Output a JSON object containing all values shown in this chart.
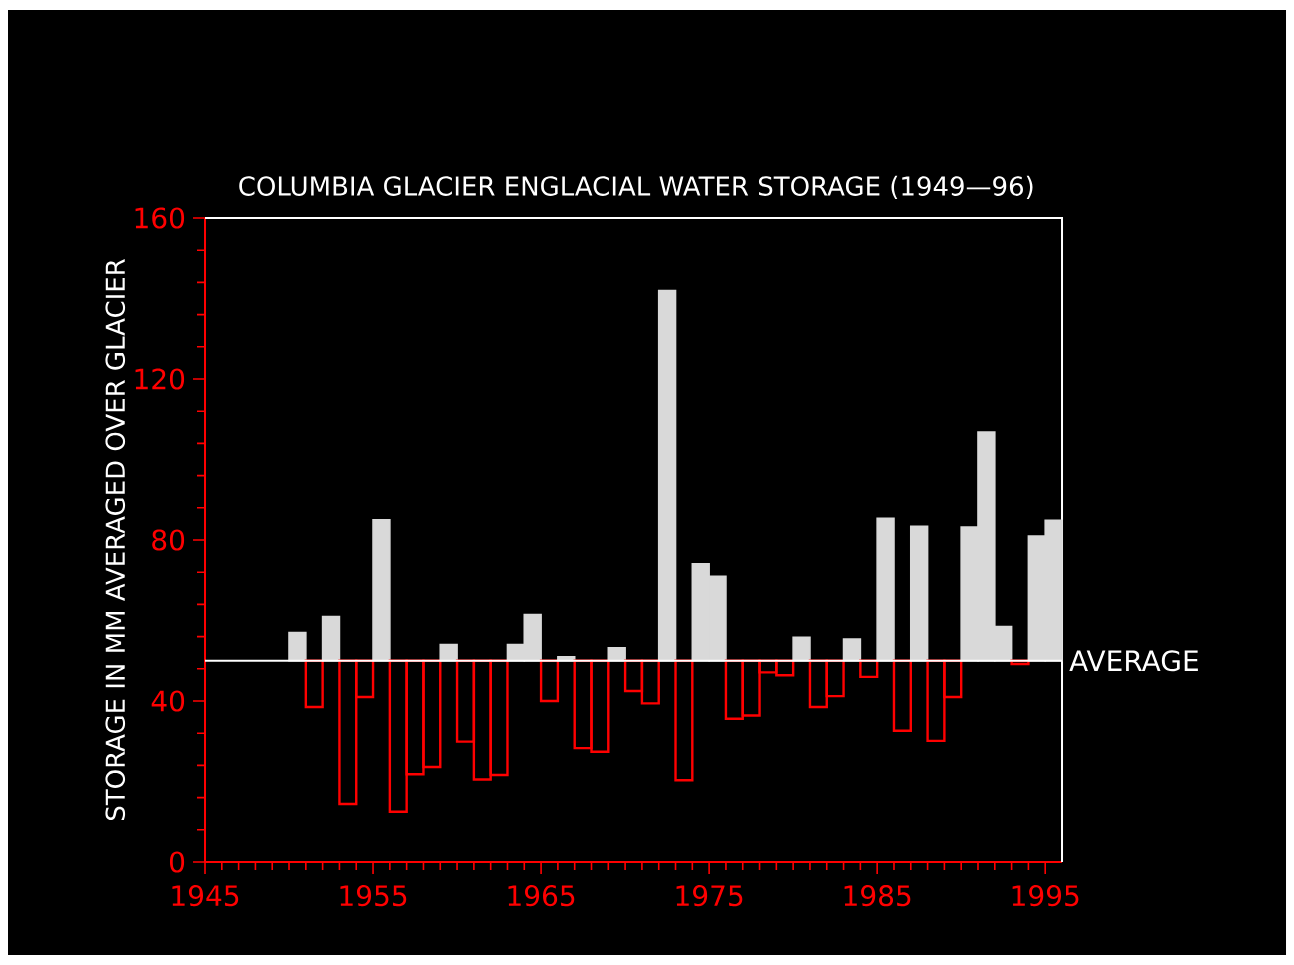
{
  "chart_data": {
    "type": "bar",
    "title": "COLUMBIA GLACIER ENGLACIAL WATER STORAGE (1949—96)",
    "ylabel": "STORAGE IN MM AVERAGED OVER GLACIER",
    "x": [
      1950.5,
      1951.5,
      1952.5,
      1953.5,
      1954.5,
      1955.5,
      1956.5,
      1957.5,
      1958.5,
      1959.5,
      1960.5,
      1961.5,
      1962.5,
      1963.5,
      1964.5,
      1965.5,
      1966.5,
      1967.5,
      1968.5,
      1969.5,
      1970.5,
      1971.5,
      1972.5,
      1973.5,
      1974.5,
      1975.5,
      1976.5,
      1977.5,
      1978.5,
      1979.5,
      1980.5,
      1981.5,
      1982.5,
      1983.5,
      1984.5,
      1985.5,
      1986.5,
      1987.5,
      1988.5,
      1989.5,
      1990.5,
      1991.5,
      1992.5,
      1993.5,
      1994.5,
      1995.5
    ],
    "base": [
      50,
      50,
      50,
      50,
      50,
      50,
      50,
      50,
      50,
      50,
      50,
      50,
      50,
      50,
      50,
      50,
      50,
      50,
      50,
      50,
      50,
      50,
      50,
      50,
      50,
      50,
      50,
      50,
      50,
      50,
      50,
      50,
      50,
      50,
      50,
      50,
      50,
      50,
      50,
      50,
      50,
      50,
      50,
      50,
      50,
      50
    ],
    "values": [
      7,
      -11.5,
      11,
      -35.6,
      -9,
      35,
      -37.5,
      -28.2,
      -26.4,
      4,
      -20.1,
      -29.5,
      -28.4,
      4,
      11.5,
      -10,
      1,
      -21.7,
      -22.6,
      3.2,
      -7.5,
      -10.6,
      92,
      -29.7,
      24.1,
      21,
      -14.4,
      -13.6,
      -2.9,
      -3.6,
      5.8,
      -11.5,
      -8.8,
      5.4,
      -4,
      35.4,
      -17.4,
      33.4,
      -19.9,
      -9,
      33.2,
      56.8,
      8.5,
      -0.8,
      31,
      34.9
    ],
    "colors": [
      "#d9d9d9",
      "#ff0000",
      "#d9d9d9",
      "#ff0000",
      "#ff0000",
      "#d9d9d9",
      "#ff0000",
      "#ff0000",
      "#ff0000",
      "#d9d9d9",
      "#ff0000",
      "#ff0000",
      "#ff0000",
      "#d9d9d9",
      "#d9d9d9",
      "#ff0000",
      "#d9d9d9",
      "#ff0000",
      "#ff0000",
      "#d9d9d9",
      "#ff0000",
      "#ff0000",
      "#d9d9d9",
      "#ff0000",
      "#d9d9d9",
      "#d9d9d9",
      "#ff0000",
      "#ff0000",
      "#ff0000",
      "#ff0000",
      "#d9d9d9",
      "#ff0000",
      "#ff0000",
      "#d9d9d9",
      "#ff0000",
      "#d9d9d9",
      "#ff0000",
      "#d9d9d9",
      "#ff0000",
      "#ff0000",
      "#d9d9d9",
      "#d9d9d9",
      "#d9d9d9",
      "#ff0000",
      "#d9d9d9",
      "#d9d9d9"
    ],
    "xlim": [
      1945,
      1996
    ],
    "xticks": [
      1945,
      1955,
      1965,
      1975,
      1985,
      1995
    ],
    "ylim": [
      0,
      160
    ],
    "yticks": [
      0,
      40,
      80,
      120,
      160
    ],
    "ref_lines": [
      {
        "axis": "y",
        "value": 50,
        "label": "AVERAGE",
        "color": "#ffffff"
      }
    ]
  }
}
